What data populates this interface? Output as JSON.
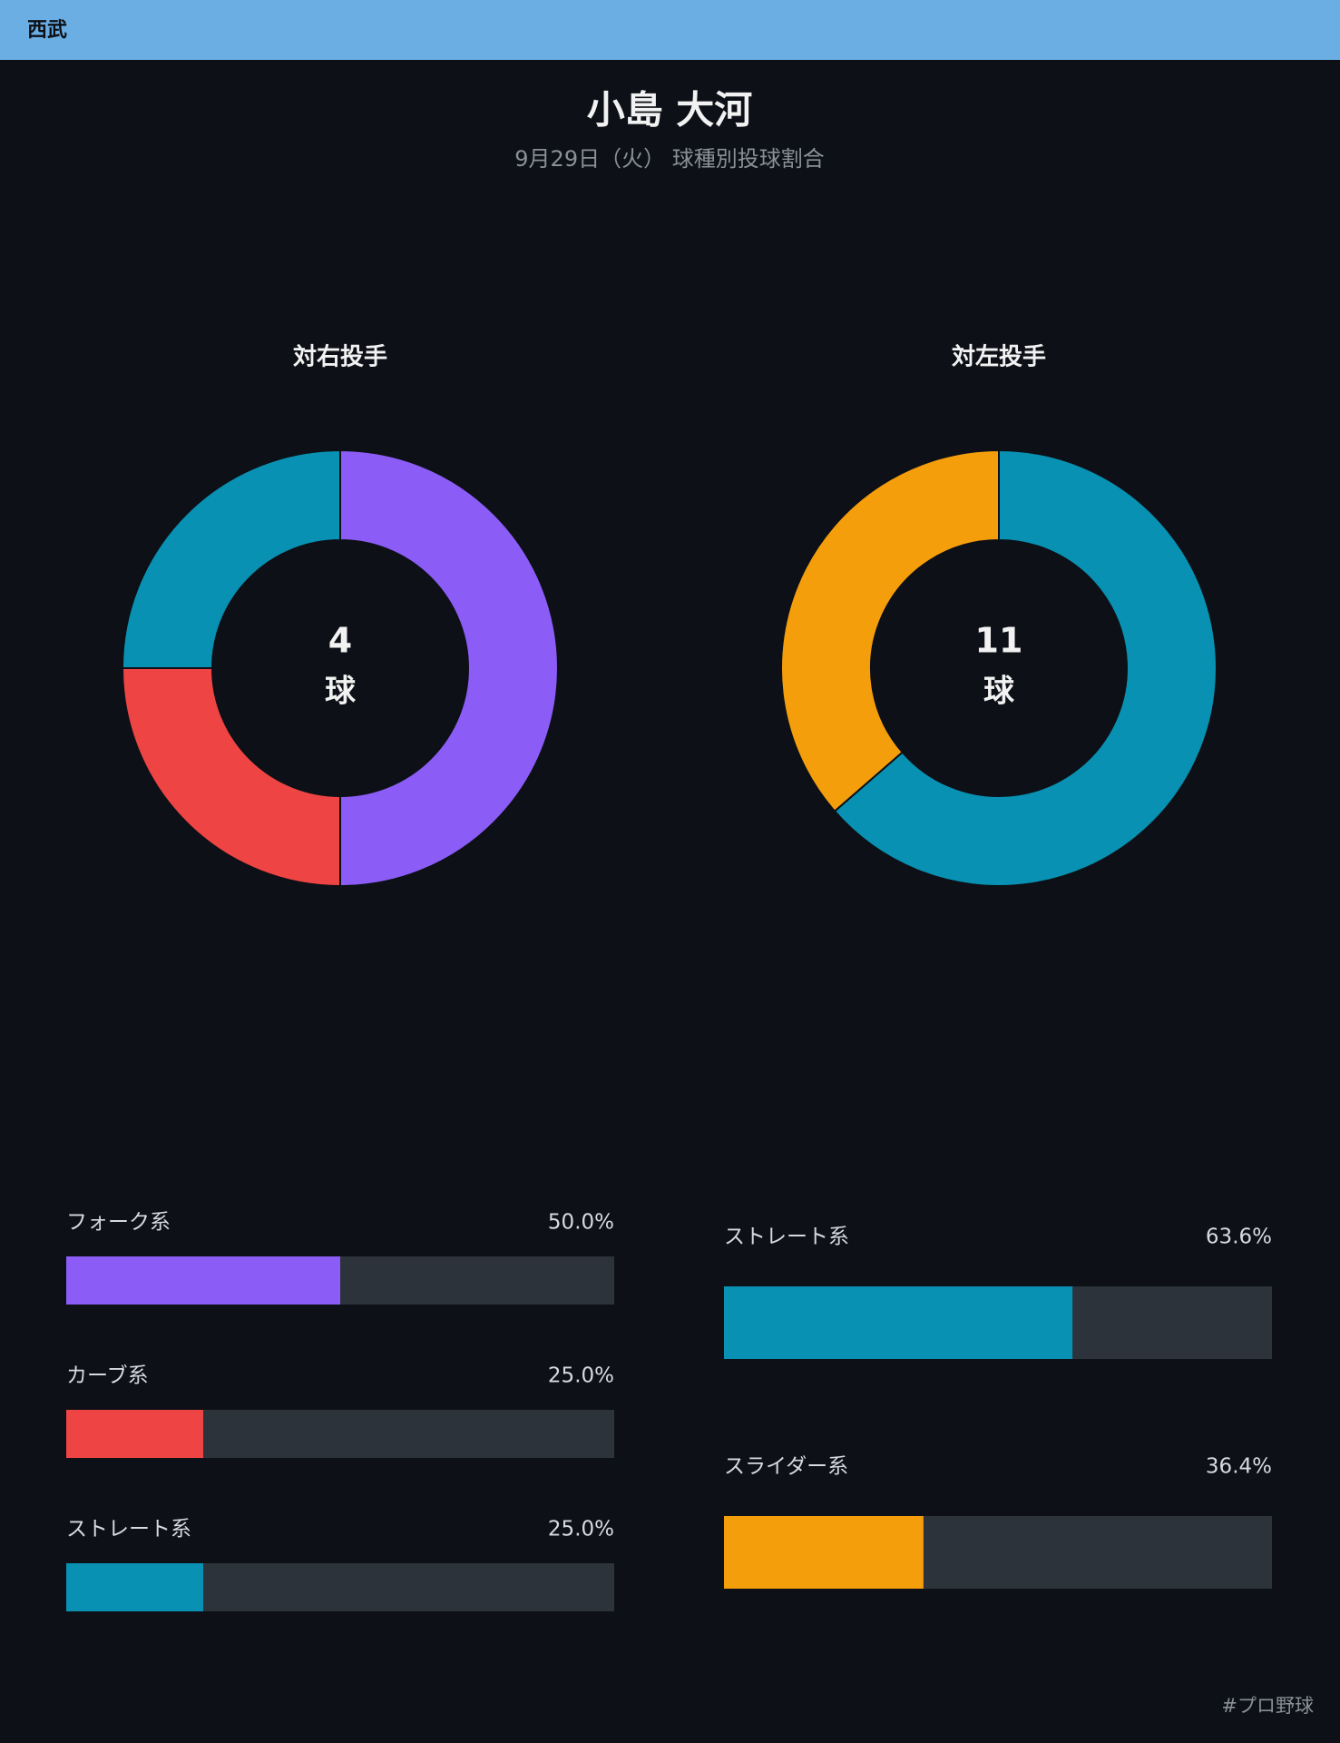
{
  "header": {
    "team": "西武"
  },
  "title": "小島 大河",
  "subtitle": "9月29日（火） 球種別投球割合",
  "footer": "#プロ野球",
  "chart_data": [
    {
      "type": "donut",
      "title": "対右投手",
      "center_value": 4,
      "center_unit": "球",
      "categories": [
        "フォーク系",
        "カーブ系",
        "ストレート系"
      ],
      "values": [
        50.0,
        25.0,
        25.0
      ],
      "value_labels": [
        "50.0%",
        "25.0%",
        "25.0%"
      ],
      "colors": [
        "#8b5cf6",
        "#ef4444",
        "#0891b2"
      ],
      "xlim": [
        0,
        100
      ]
    },
    {
      "type": "donut",
      "title": "対左投手",
      "center_value": 11,
      "center_unit": "球",
      "categories": [
        "ストレート系",
        "スライダー系"
      ],
      "values": [
        63.6,
        36.4
      ],
      "value_labels": [
        "63.6%",
        "36.4%"
      ],
      "colors": [
        "#0891b2",
        "#f59e0b"
      ],
      "xlim": [
        0,
        100
      ]
    }
  ]
}
